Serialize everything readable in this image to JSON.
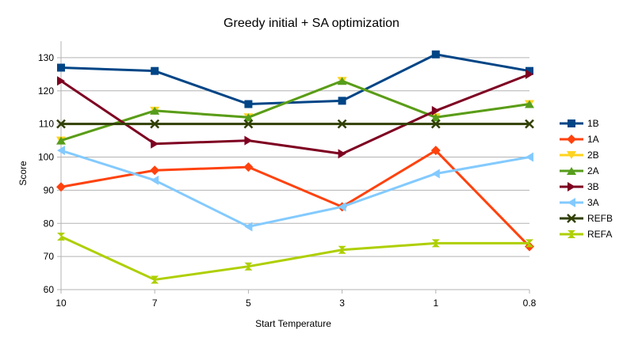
{
  "chart_data": {
    "type": "line",
    "title": "Greedy initial + SA optimization",
    "xlabel": "Start Temperature",
    "ylabel": "Score",
    "categories": [
      "10",
      "7",
      "5",
      "3",
      "1",
      "0.8"
    ],
    "ylim": [
      60,
      135
    ],
    "yticks": [
      60,
      70,
      80,
      90,
      100,
      110,
      120,
      130
    ],
    "grid": "horizontal",
    "legend_position": "right",
    "series": [
      {
        "name": "1B",
        "values": [
          127,
          126,
          116,
          117,
          131,
          126
        ],
        "color": "#004586",
        "marker": "square"
      },
      {
        "name": "1A",
        "values": [
          91,
          96,
          97,
          85,
          102,
          73
        ],
        "color": "#ff420e",
        "marker": "diamond"
      },
      {
        "name": "2B",
        "values": [
          105,
          114,
          112,
          123,
          112,
          116
        ],
        "color": "#ffd320",
        "marker": "triangle-down"
      },
      {
        "name": "2A",
        "values": [
          105,
          114,
          112,
          123,
          112,
          116
        ],
        "color": "#579d1c",
        "marker": "triangle-up"
      },
      {
        "name": "3B",
        "values": [
          123,
          104,
          105,
          101,
          114,
          125
        ],
        "color": "#7e0021",
        "marker": "triangle-right"
      },
      {
        "name": "3A",
        "values": [
          102,
          93,
          79,
          85,
          95,
          100
        ],
        "color": "#83caff",
        "marker": "triangle-left"
      },
      {
        "name": "REFB",
        "values": [
          110,
          110,
          110,
          110,
          110,
          110
        ],
        "color": "#314004",
        "marker": "x"
      },
      {
        "name": "REFA",
        "values": [
          76,
          63,
          67,
          72,
          74,
          74
        ],
        "color": "#aecf00",
        "marker": "hourglass"
      }
    ]
  }
}
